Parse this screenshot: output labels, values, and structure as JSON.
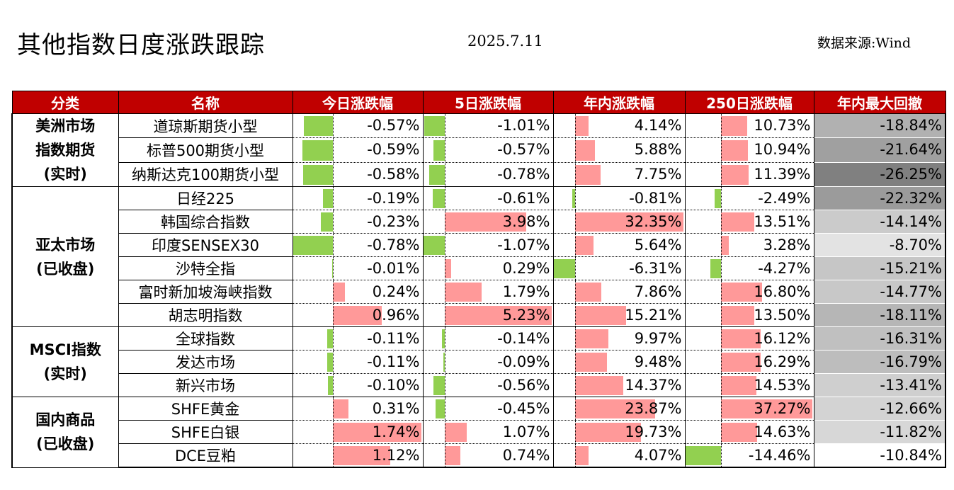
{
  "header": {
    "title": "其他指数日度涨跌跟踪",
    "date": "2025.7.11",
    "source": "数据来源:Wind"
  },
  "columns": [
    "分类",
    "名称",
    "今日涨跌幅",
    "5日涨跌幅",
    "年内涨跌幅",
    "250日涨跌幅",
    "年内最大回撤"
  ],
  "colors": {
    "header_bg": "#c00000",
    "positive_bar": "#ff9999",
    "negative_bar": "#92d050"
  },
  "groups": [
    {
      "label": "美洲市场\n指数期货\n(实时)",
      "rows": [
        {
          "name": "道琼斯期货小型",
          "day": -0.57,
          "d5": -1.01,
          "ytd": 4.14,
          "d250": 10.73,
          "dd": -18.84
        },
        {
          "name": "标普500期货小型",
          "day": -0.59,
          "d5": -0.57,
          "ytd": 5.88,
          "d250": 10.94,
          "dd": -21.64
        },
        {
          "name": "纳斯达克100期货小型",
          "day": -0.58,
          "d5": -0.78,
          "ytd": 7.75,
          "d250": 11.39,
          "dd": -26.25
        }
      ]
    },
    {
      "label": "亚太市场\n(已收盘)",
      "rows": [
        {
          "name": "日经225",
          "day": -0.19,
          "d5": -0.61,
          "ytd": -0.81,
          "d250": -2.49,
          "dd": -22.32
        },
        {
          "name": "韩国综合指数",
          "day": -0.23,
          "d5": 3.98,
          "ytd": 32.35,
          "d250": 13.51,
          "dd": -14.14
        },
        {
          "name": "印度SENSEX30",
          "day": -0.78,
          "d5": -1.07,
          "ytd": 5.64,
          "d250": 3.28,
          "dd": -8.7
        },
        {
          "name": "沙特全指",
          "day": -0.01,
          "d5": 0.29,
          "ytd": -6.31,
          "d250": -4.27,
          "dd": -15.21
        },
        {
          "name": "富时新加坡海峡指数",
          "day": 0.24,
          "d5": 1.79,
          "ytd": 7.86,
          "d250": 16.8,
          "dd": -14.77
        },
        {
          "name": "胡志明指数",
          "day": 0.96,
          "d5": 5.23,
          "ytd": 15.21,
          "d250": 13.5,
          "dd": -18.11
        }
      ]
    },
    {
      "label": "MSCI指数\n(实时)",
      "rows": [
        {
          "name": "全球指数",
          "day": -0.11,
          "d5": -0.14,
          "ytd": 9.97,
          "d250": 16.12,
          "dd": -16.31
        },
        {
          "name": "发达市场",
          "day": -0.11,
          "d5": -0.09,
          "ytd": 9.48,
          "d250": 16.29,
          "dd": -16.79
        },
        {
          "name": "新兴市场",
          "day": -0.1,
          "d5": -0.56,
          "ytd": 14.37,
          "d250": 14.53,
          "dd": -13.41
        }
      ]
    },
    {
      "label": "国内商品\n(已收盘)",
      "rows": [
        {
          "name": "SHFE黄金",
          "day": 0.31,
          "d5": -0.45,
          "ytd": 23.87,
          "d250": 37.27,
          "dd": -12.66
        },
        {
          "name": "SHFE白银",
          "day": 1.74,
          "d5": 1.07,
          "ytd": 19.73,
          "d250": 14.63,
          "dd": -11.82
        },
        {
          "name": "DCE豆粕",
          "day": 1.12,
          "d5": 0.74,
          "ytd": 4.07,
          "d250": -14.46,
          "dd": -10.84
        }
      ]
    }
  ]
}
